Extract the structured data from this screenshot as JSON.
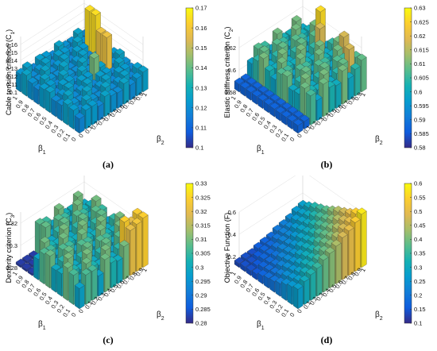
{
  "chart_data": [
    {
      "type": "bar3d",
      "panel_label": "(a)",
      "zlabel": "Cable tension criterion (C",
      "zlabel_sub": "1",
      "xlabel": "β",
      "xlabel_sub": "1",
      "ylabel": "β",
      "ylabel_sub": "2",
      "x_ticks": [
        "1",
        "0.9",
        "0.8",
        "0.7",
        "0.6",
        "0.5",
        "0.4",
        "0.3",
        "0.2",
        "0.1",
        "0"
      ],
      "y_ticks": [
        "0",
        "0.1",
        "0.2",
        "0.3",
        "0.4",
        "0.5",
        "0.6",
        "0.7",
        "0.8",
        "0.9",
        "1"
      ],
      "zlim": [
        0.1,
        0.17
      ],
      "z_ticks": [
        "0.1",
        "0.11",
        "0.12",
        "0.13",
        "0.14",
        "0.15",
        "0.16"
      ],
      "colorbar_ticks": [
        "0.17",
        "0.16",
        "0.15",
        "0.14",
        "0.13",
        "0.12",
        "0.11",
        "0.1"
      ],
      "colorbar_range": [
        0.1,
        0.17
      ],
      "colormap": "parula",
      "pattern_note": "mostly ~0.12, few tall peaks near 0.16-0.17"
    },
    {
      "type": "bar3d",
      "panel_label": "(b)",
      "zlabel": "Elastic stiffness criterion (C",
      "zlabel_sub": "2",
      "xlabel": "β",
      "xlabel_sub": "1",
      "ylabel": "β",
      "ylabel_sub": "2",
      "x_ticks": [
        "1",
        "0.9",
        "0.8",
        "0.7",
        "0.6",
        "0.5",
        "0.4",
        "0.3",
        "0.2",
        "0.1",
        "0"
      ],
      "y_ticks": [
        "0",
        "0.1",
        "0.2",
        "0.3",
        "0.4",
        "0.5",
        "0.6",
        "0.7",
        "0.8",
        "0.9",
        "1"
      ],
      "zlim": [
        0.58,
        0.63
      ],
      "z_ticks": [
        "0.58",
        "0.6",
        "0.62"
      ],
      "colorbar_ticks": [
        "0.63",
        "0.625",
        "0.62",
        "0.615",
        "0.61",
        "0.605",
        "0.6",
        "0.595",
        "0.59",
        "0.585",
        "0.58"
      ],
      "colorbar_range": [
        0.58,
        0.63
      ],
      "colormap": "parula",
      "pattern_note": "mostly ~0.60-0.61 with peaks near 0.625"
    },
    {
      "type": "bar3d",
      "panel_label": "(c)",
      "zlabel": "Dexterity criterion (C",
      "zlabel_sub": "3",
      "xlabel": "β",
      "xlabel_sub": "1",
      "ylabel": "β",
      "ylabel_sub": "2",
      "x_ticks": [
        "1",
        "0.9",
        "0.8",
        "0.7",
        "0.6",
        "0.5",
        "0.4",
        "0.3",
        "0.2",
        "0.1",
        "0"
      ],
      "y_ticks": [
        "0",
        "0.1",
        "0.2",
        "0.3",
        "0.4",
        "0.5",
        "0.6",
        "0.7",
        "0.8",
        "0.9",
        "1"
      ],
      "zlim": [
        0.28,
        0.33
      ],
      "z_ticks": [
        "0.28",
        "0.3",
        "0.32"
      ],
      "colorbar_ticks": [
        "0.33",
        "0.325",
        "0.32",
        "0.315",
        "0.31",
        "0.305",
        "0.3",
        "0.295",
        "0.29",
        "0.285",
        "0.28"
      ],
      "colorbar_range": [
        0.28,
        0.33
      ],
      "colormap": "parula",
      "pattern_note": "high near beta1=1 (~0.325), mostly ~0.30-0.31"
    },
    {
      "type": "bar3d",
      "panel_label": "(d)",
      "zlabel": "Objective Function (F)",
      "zlabel_sub": "",
      "xlabel": "β",
      "xlabel_sub": "1",
      "ylabel": "β",
      "ylabel_sub": "2",
      "x_ticks": [
        "1",
        "0.9",
        "0.8",
        "0.7",
        "0.6",
        "0.5",
        "0.4",
        "0.3",
        "0.2",
        "0.1",
        "0"
      ],
      "y_ticks": [
        "0",
        "0.1",
        "0.2",
        "0.3",
        "0.4",
        "0.5",
        "0.6",
        "0.7",
        "0.8",
        "0.9",
        "1"
      ],
      "zlim": [
        0.1,
        0.6
      ],
      "z_ticks": [
        "0.2",
        "0.4",
        "0.6"
      ],
      "colorbar_ticks": [
        "0.6",
        "0.55",
        "0.5",
        "0.45",
        "0.4",
        "0.35",
        "0.3",
        "0.25",
        "0.2",
        "0.15",
        "0.1"
      ],
      "colorbar_range": [
        0.1,
        0.6
      ],
      "colormap": "parula",
      "pattern_note": "increases smoothly toward beta1=0, beta2=1 (max ~0.57)"
    }
  ]
}
